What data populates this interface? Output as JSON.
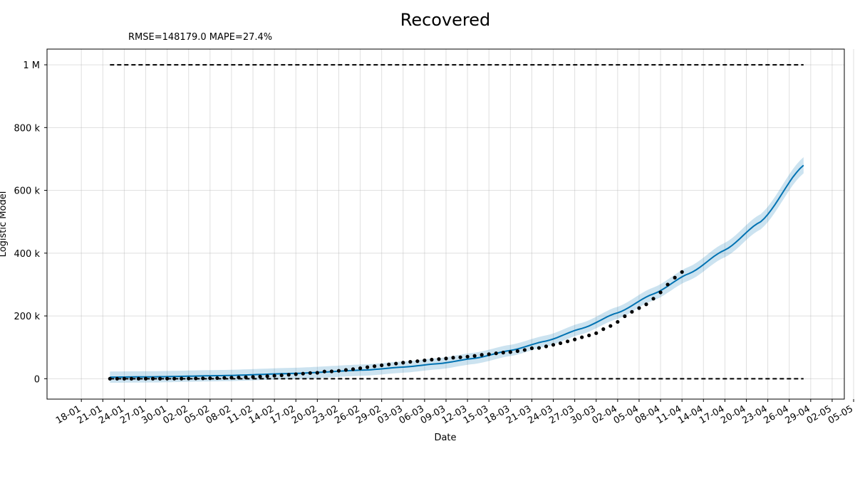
{
  "chart_data": {
    "type": "line",
    "title": "Recovered",
    "subtitle": "RMSE=148179.0 MAPE=27.4%",
    "xlabel": "Date",
    "ylabel": "Logistic Model",
    "grid": true,
    "x_ticks": [
      "18-01",
      "21-01",
      "24-01",
      "27-01",
      "30-01",
      "02-02",
      "05-02",
      "08-02",
      "11-02",
      "14-02",
      "17-02",
      "20-02",
      "23-02",
      "26-02",
      "29-02",
      "03-03",
      "06-03",
      "09-03",
      "12-03",
      "15-03",
      "18-03",
      "21-03",
      "24-03",
      "27-03",
      "30-03",
      "02-04",
      "05-04",
      "08-04",
      "11-04",
      "14-04",
      "17-04",
      "20-04",
      "23-04",
      "26-04",
      "29-04",
      "02-05",
      "05-05"
    ],
    "x_range_days": [
      -4.8,
      106.7
    ],
    "y_ticks": [
      {
        "value": 0,
        "label": "0"
      },
      {
        "value": 200000,
        "label": "200 k"
      },
      {
        "value": 400000,
        "label": "400 k"
      },
      {
        "value": 600000,
        "label": "600 k"
      },
      {
        "value": 800000,
        "label": "800 k"
      },
      {
        "value": 1000000,
        "label": "1 M"
      }
    ],
    "ylim": [
      -65000,
      1050000
    ],
    "reference_lines": {
      "cap": 1000000,
      "floor": 0,
      "x_start_day": 4,
      "x_end_day": 101
    },
    "model_line": {
      "color": "#0072B2",
      "band_color": "#0072B2",
      "x_start_day": 4,
      "x_end_day": 101,
      "points": [
        [
          4,
          5000
        ],
        [
          10,
          6000
        ],
        [
          20,
          10000
        ],
        [
          30,
          17000
        ],
        [
          40,
          28000
        ],
        [
          45,
          37000
        ],
        [
          50,
          48000
        ],
        [
          55,
          65000
        ],
        [
          60,
          90000
        ],
        [
          65,
          120000
        ],
        [
          70,
          160000
        ],
        [
          75,
          210000
        ],
        [
          80,
          270000
        ],
        [
          85,
          335000
        ],
        [
          90,
          410000
        ],
        [
          95,
          500000
        ],
        [
          101,
          680000
        ]
      ],
      "band_halfwidth": 18000
    },
    "observed": {
      "color": "#000000",
      "points": [
        [
          4,
          30
        ],
        [
          5,
          34
        ],
        [
          6,
          39
        ],
        [
          7,
          52
        ],
        [
          8,
          61
        ],
        [
          9,
          107
        ],
        [
          10,
          126
        ],
        [
          11,
          143
        ],
        [
          12,
          222
        ],
        [
          13,
          284
        ],
        [
          14,
          472
        ],
        [
          15,
          623
        ],
        [
          16,
          852
        ],
        [
          17,
          1124
        ],
        [
          18,
          1487
        ],
        [
          19,
          2011
        ],
        [
          20,
          2616
        ],
        [
          21,
          3244
        ],
        [
          22,
          3946
        ],
        [
          23,
          4683
        ],
        [
          24,
          5646
        ],
        [
          25,
          6728
        ],
        [
          26,
          8101
        ],
        [
          27,
          9425
        ],
        [
          28,
          10860
        ],
        [
          29,
          12583
        ],
        [
          30,
          14352
        ],
        [
          31,
          16121
        ],
        [
          32,
          18177
        ],
        [
          33,
          18890
        ],
        [
          34,
          22886
        ],
        [
          35,
          23394
        ],
        [
          36,
          25227
        ],
        [
          37,
          27905
        ],
        [
          38,
          30384
        ],
        [
          39,
          33277
        ],
        [
          40,
          36711
        ],
        [
          41,
          39782
        ],
        [
          42,
          42716
        ],
        [
          43,
          45602
        ],
        [
          44,
          48228
        ],
        [
          45,
          51170
        ],
        [
          46,
          53796
        ],
        [
          47,
          55865
        ],
        [
          48,
          58358
        ],
        [
          49,
          60694
        ],
        [
          50,
          62494
        ],
        [
          51,
          64404
        ],
        [
          52,
          67003
        ],
        [
          53,
          68324
        ],
        [
          54,
          70251
        ],
        [
          55,
          72624
        ],
        [
          56,
          76034
        ],
        [
          57,
          78088
        ],
        [
          58,
          80840
        ],
        [
          59,
          83207
        ],
        [
          60,
          84854
        ],
        [
          61,
          88000
        ],
        [
          62,
          91500
        ],
        [
          63,
          97000
        ],
        [
          64,
          98000
        ],
        [
          65,
          103000
        ],
        [
          66,
          108000
        ],
        [
          67,
          113000
        ],
        [
          68,
          119000
        ],
        [
          69,
          125000
        ],
        [
          70,
          132000
        ],
        [
          71,
          138000
        ],
        [
          72,
          145000
        ],
        [
          73,
          158000
        ],
        [
          74,
          168000
        ],
        [
          75,
          181000
        ],
        [
          76,
          199000
        ],
        [
          77,
          213000
        ],
        [
          78,
          225000
        ],
        [
          79,
          237000
        ],
        [
          80,
          255000
        ],
        [
          81,
          275000
        ],
        [
          82,
          300000
        ],
        [
          83,
          322000
        ],
        [
          84,
          340000
        ]
      ]
    }
  }
}
